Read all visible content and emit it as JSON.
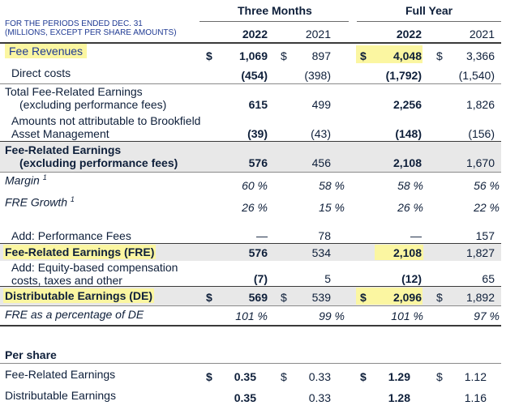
{
  "header": {
    "periods_note_line1": "FOR THE PERIODS ENDED DEC. 31",
    "periods_note_line2": "(MILLIONS, EXCEPT PER SHARE AMOUNTS)",
    "three_months": "Three Months",
    "full_year": "Full Year",
    "col_3m_2022": "2022",
    "col_3m_2021": "2021",
    "col_fy_2022": "2022",
    "col_fy_2021": "2021"
  },
  "rows": {
    "fee_revenues": {
      "label": "Fee Revenues",
      "d1": "$",
      "v1": "1,069",
      "d2": "$",
      "v2": "897",
      "d3": "$",
      "v3": "4,048",
      "d4": "$",
      "v4": "3,366"
    },
    "direct_costs": {
      "label": "Direct costs",
      "v1": "(454)",
      "v2": "(398)",
      "v3": "(1,792)",
      "v4": "(1,540)"
    },
    "total_fre": {
      "label_line1": "Total Fee-Related Earnings",
      "label_line2": "(excluding performance fees)",
      "v1": "615",
      "v2": "499",
      "v3": "2,256",
      "v4": "1,826"
    },
    "not_attrib": {
      "label_line1": "Amounts not attributable to Brookfield",
      "label_line2": "Asset Management",
      "v1": "(39)",
      "v2": "(43)",
      "v3": "(148)",
      "v4": "(156)"
    },
    "fre_excl": {
      "label_line1": "Fee-Related Earnings",
      "label_line2": "(excluding performance fees)",
      "v1": "576",
      "v2": "456",
      "v3": "2,108",
      "v4": "1,670"
    },
    "margin": {
      "label": "Margin",
      "note": "1",
      "v1": "60 %",
      "v2": "58 %",
      "v3": "58 %",
      "v4": "56 %"
    },
    "fre_growth": {
      "label": "FRE Growth",
      "note": "1",
      "v1": "26 %",
      "v2": "15 %",
      "v3": "26 %",
      "v4": "22 %"
    },
    "perf_fees": {
      "label": "Add: Performance Fees",
      "v1": "—",
      "v2": "78",
      "v3": "—",
      "v4": "157"
    },
    "fre": {
      "label": "Fee-Related Earnings (FRE)",
      "v1": "576",
      "v2": "534",
      "v3": "2,108",
      "v4": "1,827"
    },
    "equity_comp": {
      "label_line1": "Add: Equity-based compensation",
      "label_line2": "costs, taxes and other",
      "v1": "(7)",
      "v2": "5",
      "v3": "(12)",
      "v4": "65"
    },
    "de": {
      "label": "Distributable Earnings (DE)",
      "d1": "$",
      "v1": "569",
      "d2": "$",
      "v2": "539",
      "d3": "$",
      "v3": "2,096",
      "d4": "$",
      "v4": "1,892"
    },
    "fre_pct": {
      "label": "FRE as a percentage of DE",
      "v1": "101 %",
      "v2": "99 %",
      "v3": "101 %",
      "v4": "97 %"
    }
  },
  "per_share": {
    "title": "Per share",
    "fre": {
      "label": "Fee-Related Earnings",
      "d1": "$",
      "v1": "0.35",
      "d2": "$",
      "v2": "0.33",
      "d3": "$",
      "v3": "1.29",
      "d4": "$",
      "v4": "1.12"
    },
    "de": {
      "label": "Distributable Earnings",
      "v1": "0.35",
      "v2": "0.33",
      "v3": "1.28",
      "v4": "1.16"
    }
  },
  "colors": {
    "highlight": "#fbf6a1",
    "header_blue": "#1f3a93",
    "band_gray": "#e8e8e8"
  }
}
